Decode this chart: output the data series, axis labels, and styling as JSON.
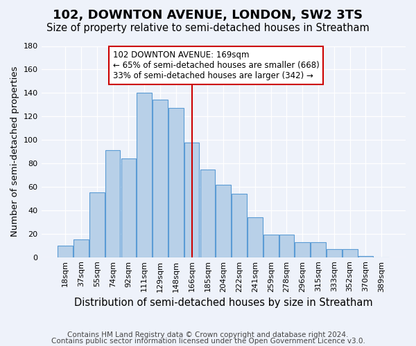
{
  "title": "102, DOWNTON AVENUE, LONDON, SW2 3TS",
  "subtitle": "Size of property relative to semi-detached houses in Streatham",
  "xlabel": "Distribution of semi-detached houses by size in Streatham",
  "ylabel": "Number of semi-detached properties",
  "footer1": "Contains HM Land Registry data © Crown copyright and database right 2024.",
  "footer2": "Contains public sector information licensed under the Open Government Licence v3.0.",
  "bar_labels": [
    "18sqm",
    "37sqm",
    "55sqm",
    "74sqm",
    "92sqm",
    "111sqm",
    "129sqm",
    "148sqm",
    "166sqm",
    "185sqm",
    "204sqm",
    "222sqm",
    "241sqm",
    "259sqm",
    "278sqm",
    "296sqm",
    "315sqm",
    "333sqm",
    "352sqm",
    "370sqm",
    "389sqm"
  ],
  "bar_heights": [
    10,
    15,
    55,
    91,
    84,
    140,
    134,
    127,
    98,
    75,
    62,
    54,
    34,
    19,
    19,
    13,
    13,
    7,
    7,
    1,
    0
  ],
  "bar_color": "#b8d0e8",
  "bar_edge_color": "#5b9bd5",
  "vline_index": 8,
  "annotation_text1": "102 DOWNTON AVENUE: 169sqm",
  "annotation_text2": "← 65% of semi-detached houses are smaller (668)",
  "annotation_text3": "33% of semi-detached houses are larger (342) →",
  "annotation_box_color": "#ffffff",
  "annotation_box_edge": "#cc0000",
  "vline_color": "#cc0000",
  "background_color": "#eef2fa",
  "ylim": [
    0,
    180
  ],
  "yticks": [
    0,
    20,
    40,
    60,
    80,
    100,
    120,
    140,
    160,
    180
  ],
  "title_fontsize": 13,
  "subtitle_fontsize": 10.5,
  "xlabel_fontsize": 10.5,
  "ylabel_fontsize": 9.5,
  "tick_fontsize": 8,
  "footer_fontsize": 7.5
}
